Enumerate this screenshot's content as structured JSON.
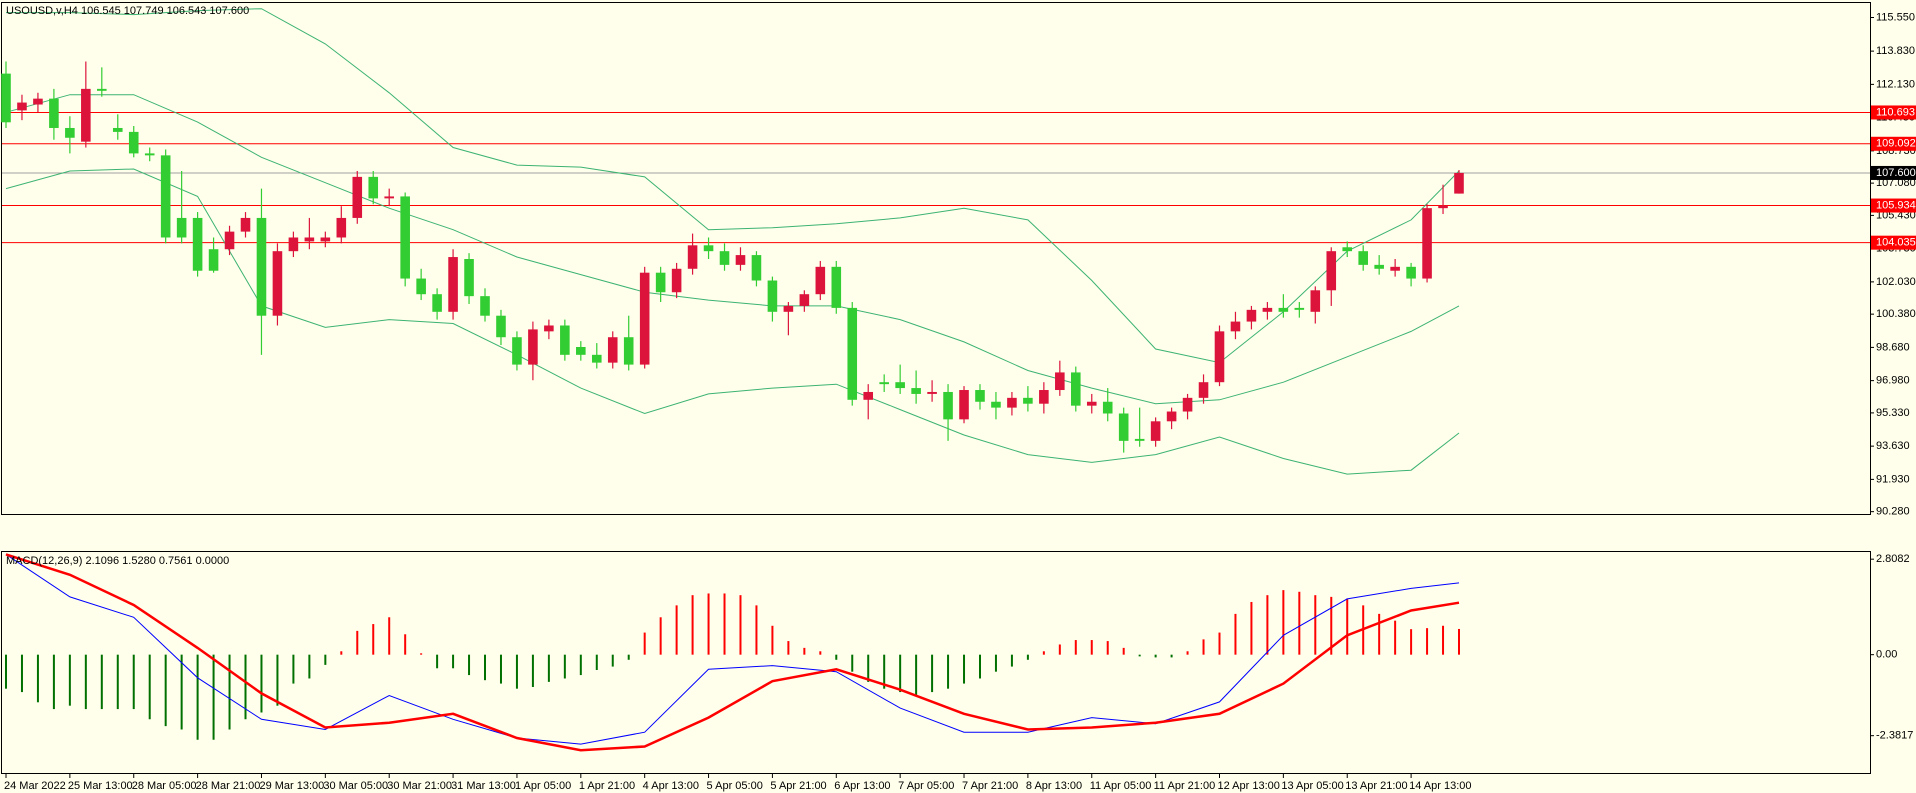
{
  "chart_data": [
    {
      "type": "candlestick",
      "title": "USOUSD,v,H4  106.545 107.749 106.543 107.600",
      "up_color": "#dc143c",
      "down_color": "#32cd32",
      "candles": [
        [
          112.68,
          113.3,
          109.9,
          110.19
        ],
        [
          110.8,
          111.6,
          110.3,
          111.2
        ],
        [
          111.1,
          111.7,
          110.7,
          111.4
        ],
        [
          111.4,
          111.9,
          109.3,
          109.9
        ],
        [
          109.9,
          110.5,
          108.6,
          109.4
        ],
        [
          109.2,
          113.3,
          108.9,
          111.9
        ],
        [
          111.9,
          113.0,
          111.5,
          111.8
        ],
        [
          109.9,
          110.6,
          109.3,
          109.7
        ],
        [
          109.7,
          110.0,
          108.4,
          108.6
        ],
        [
          108.6,
          108.9,
          108.2,
          108.5
        ],
        [
          108.5,
          108.8,
          104.0,
          104.3
        ],
        [
          105.3,
          107.7,
          104.0,
          104.3
        ],
        [
          105.3,
          105.6,
          102.3,
          102.6
        ],
        [
          103.7,
          104.3,
          102.5,
          102.6
        ],
        [
          103.7,
          104.9,
          103.4,
          104.6
        ],
        [
          104.6,
          105.6,
          104.3,
          105.3
        ],
        [
          105.3,
          106.8,
          98.3,
          100.3
        ],
        [
          100.3,
          104.0,
          99.8,
          103.6
        ],
        [
          103.6,
          104.6,
          103.3,
          104.3
        ],
        [
          104.1,
          105.3,
          103.7,
          104.3
        ],
        [
          104.1,
          104.6,
          103.8,
          104.3
        ],
        [
          104.3,
          105.9,
          104.0,
          105.3
        ],
        [
          105.3,
          107.7,
          105.0,
          107.4
        ],
        [
          107.4,
          107.7,
          106.0,
          106.3
        ],
        [
          106.3,
          106.8,
          105.9,
          106.4
        ],
        [
          106.4,
          106.6,
          101.8,
          102.2
        ],
        [
          102.2,
          102.7,
          101.1,
          101.4
        ],
        [
          101.4,
          101.7,
          100.1,
          100.5
        ],
        [
          100.5,
          103.7,
          100.1,
          103.3
        ],
        [
          103.2,
          103.5,
          100.9,
          101.3
        ],
        [
          101.3,
          101.7,
          100.0,
          100.3
        ],
        [
          100.3,
          100.6,
          98.8,
          99.2
        ],
        [
          99.2,
          99.5,
          97.5,
          97.8
        ],
        [
          97.8,
          100.0,
          97.0,
          99.6
        ],
        [
          99.5,
          100.1,
          99.1,
          99.8
        ],
        [
          99.8,
          100.1,
          98.0,
          98.3
        ],
        [
          98.7,
          99.0,
          98.0,
          98.3
        ],
        [
          98.3,
          98.9,
          97.6,
          97.9
        ],
        [
          97.9,
          99.5,
          97.6,
          99.2
        ],
        [
          99.2,
          100.3,
          97.5,
          97.8
        ],
        [
          97.8,
          102.8,
          97.6,
          102.5
        ],
        [
          102.5,
          102.8,
          101.0,
          101.5
        ],
        [
          101.5,
          103.0,
          101.2,
          102.7
        ],
        [
          102.7,
          104.5,
          102.4,
          103.9
        ],
        [
          103.9,
          104.3,
          103.2,
          103.6
        ],
        [
          103.6,
          104.0,
          102.6,
          102.9
        ],
        [
          102.9,
          103.8,
          102.6,
          103.4
        ],
        [
          103.4,
          103.6,
          101.8,
          102.1
        ],
        [
          102.1,
          102.3,
          100.0,
          100.5
        ],
        [
          100.5,
          101.0,
          99.3,
          100.8
        ],
        [
          100.8,
          101.6,
          100.5,
          101.4
        ],
        [
          101.4,
          103.1,
          101.1,
          102.8
        ],
        [
          102.8,
          103.1,
          100.4,
          100.7
        ],
        [
          100.7,
          101.0,
          95.7,
          96.0
        ],
        [
          96.0,
          96.8,
          95.0,
          96.4
        ],
        [
          96.9,
          97.3,
          96.4,
          96.8
        ],
        [
          96.9,
          97.8,
          96.3,
          96.6
        ],
        [
          96.6,
          97.5,
          95.8,
          96.3
        ],
        [
          96.3,
          97.0,
          95.9,
          96.4
        ],
        [
          96.4,
          96.8,
          93.9,
          95.0
        ],
        [
          95.0,
          96.7,
          94.8,
          96.5
        ],
        [
          96.5,
          96.8,
          95.5,
          95.9
        ],
        [
          95.9,
          96.4,
          95.0,
          95.6
        ],
        [
          95.6,
          96.4,
          95.2,
          96.1
        ],
        [
          96.1,
          96.7,
          95.4,
          95.8
        ],
        [
          95.8,
          96.9,
          95.3,
          96.5
        ],
        [
          96.5,
          98.0,
          96.2,
          97.4
        ],
        [
          97.4,
          97.7,
          95.4,
          95.7
        ],
        [
          95.7,
          96.3,
          95.3,
          95.9
        ],
        [
          95.9,
          96.6,
          94.9,
          95.3
        ],
        [
          95.3,
          95.6,
          93.3,
          93.9
        ],
        [
          94.0,
          95.6,
          93.6,
          93.9
        ],
        [
          93.9,
          95.1,
          93.6,
          94.9
        ],
        [
          94.9,
          95.6,
          94.5,
          95.4
        ],
        [
          95.4,
          96.3,
          95.0,
          96.1
        ],
        [
          96.1,
          97.3,
          95.8,
          96.9
        ],
        [
          96.9,
          99.8,
          96.7,
          99.5
        ],
        [
          99.5,
          100.5,
          99.1,
          100.0
        ],
        [
          100.0,
          100.8,
          99.6,
          100.6
        ],
        [
          100.5,
          101.0,
          100.1,
          100.7
        ],
        [
          100.7,
          101.4,
          100.2,
          100.5
        ],
        [
          100.7,
          101.0,
          100.2,
          100.6
        ],
        [
          100.5,
          101.8,
          99.9,
          101.6
        ],
        [
          101.6,
          103.8,
          100.8,
          103.6
        ],
        [
          103.8,
          104.1,
          103.3,
          103.6
        ],
        [
          103.6,
          103.9,
          102.6,
          102.9
        ],
        [
          102.9,
          103.4,
          102.4,
          102.7
        ],
        [
          102.6,
          103.2,
          102.3,
          102.8
        ],
        [
          102.8,
          103.0,
          101.8,
          102.2
        ],
        [
          102.2,
          106.0,
          102.0,
          105.8
        ],
        [
          105.8,
          107.0,
          105.5,
          105.93
        ],
        [
          106.545,
          107.749,
          106.543,
          107.6
        ]
      ],
      "categories": [
        "24 Mar 2022",
        null,
        null,
        null,
        "25 Mar 13:00",
        null,
        null,
        null,
        "28 Mar 05:00",
        null,
        null,
        null,
        "28 Mar 21:00",
        null,
        null,
        null,
        "29 Mar 13:00",
        null,
        null,
        null,
        "30 Mar 05:00",
        null,
        null,
        null,
        "30 Mar 21:00",
        null,
        null,
        null,
        "31 Mar 13:00",
        null,
        null,
        null,
        "1 Apr 05:00",
        null,
        null,
        null,
        "1 Apr 21:00",
        null,
        null,
        null,
        "4 Apr 13:00",
        null,
        null,
        null,
        "5 Apr 05:00",
        null,
        null,
        null,
        "5 Apr 21:00",
        null,
        null,
        null,
        "6 Apr 13:00",
        null,
        null,
        null,
        "7 Apr 05:00",
        null,
        null,
        null,
        "7 Apr 21:00",
        null,
        null,
        null,
        "8 Apr 13:00",
        null,
        null,
        null,
        "11 Apr 05:00",
        null,
        null,
        null,
        "11 Apr 21:00",
        null,
        null,
        null,
        "12 Apr 13:00",
        null,
        null,
        null,
        "13 Apr 05:00",
        null,
        null,
        null,
        "13 Apr 21:00",
        null,
        null,
        null,
        "14 Apr 13:00",
        null,
        null,
        null
      ],
      "series": [
        {
          "color": "#3cb371",
          "x": [
            0,
            4,
            8,
            12,
            16,
            20,
            24,
            28,
            32,
            36,
            40,
            44,
            48,
            52,
            56,
            60,
            64,
            68,
            72,
            76,
            80,
            84,
            88,
            91
          ],
          "values": [
            115.8,
            115.8,
            115.7,
            115.9,
            116.0,
            114.2,
            111.7,
            108.9,
            108.0,
            107.9,
            107.4,
            104.7,
            104.8,
            105.0,
            105.3,
            105.8,
            105.2,
            102.1,
            98.6,
            97.9,
            100.5,
            103.6,
            105.2,
            107.7
          ]
        },
        {
          "color": "#3cb371",
          "x": [
            0,
            4,
            8,
            12,
            16,
            20,
            24,
            28,
            32,
            36,
            40,
            44,
            48,
            52,
            56,
            60,
            64,
            68,
            72,
            76,
            80,
            84,
            88,
            91
          ],
          "values": [
            110.7,
            111.6,
            111.6,
            110.2,
            108.4,
            107.1,
            105.8,
            104.7,
            103.3,
            102.4,
            101.5,
            101.1,
            100.8,
            100.8,
            100.1,
            98.96,
            97.5,
            96.6,
            95.8,
            96.0,
            96.9,
            98.2,
            99.5,
            100.8
          ]
        },
        {
          "color": "#3cb371",
          "x": [
            0,
            4,
            8,
            12,
            16,
            20,
            24,
            28,
            32,
            36,
            40,
            44,
            48,
            52,
            56,
            60,
            64,
            68,
            72,
            76,
            80,
            84,
            88,
            91
          ],
          "values": [
            106.8,
            107.7,
            107.8,
            106.4,
            100.8,
            99.7,
            100.1,
            99.9,
            98.3,
            96.6,
            95.3,
            96.3,
            96.6,
            96.8,
            95.5,
            94.2,
            93.2,
            92.8,
            93.2,
            94.1,
            93.0,
            92.2,
            92.4,
            94.3
          ]
        }
      ],
      "levels": [
        {
          "value": 110.693,
          "label": "110.693",
          "color": "#ff0000",
          "label_bg": "#ff0000"
        },
        {
          "value": 109.092,
          "label": "109.092",
          "color": "#ff0000",
          "label_bg": "#ff0000"
        },
        {
          "value": 107.6,
          "label": "107.600",
          "color": "#a0a0a0",
          "label_bg": "#000000"
        },
        {
          "value": 105.934,
          "label": "105.934",
          "color": "#ff0000",
          "label_bg": "#ff0000"
        },
        {
          "value": 104.035,
          "label": "104.035",
          "color": "#ff0000",
          "label_bg": "#ff0000"
        }
      ],
      "ylim": [
        90.16,
        116.24
      ],
      "yticks": [
        {
          "value": 115.55,
          "label": "115.550"
        },
        {
          "value": 113.83,
          "label": "113.830"
        },
        {
          "value": 112.13,
          "label": "112.130"
        },
        {
          "value": 110.43,
          "label": "110.430"
        },
        {
          "value": 108.73,
          "label": "108.730"
        },
        {
          "value": 107.08,
          "label": "107.080"
        },
        {
          "value": 105.43,
          "label": "105.430"
        },
        {
          "value": 103.73,
          "label": "103.730"
        },
        {
          "value": 102.03,
          "label": "102.030"
        },
        {
          "value": 100.38,
          "label": "100.380"
        },
        {
          "value": 98.68,
          "label": "98.680"
        },
        {
          "value": 96.98,
          "label": "96.980"
        },
        {
          "value": 95.33,
          "label": "95.330"
        },
        {
          "value": 93.63,
          "label": "93.630"
        },
        {
          "value": 91.93,
          "label": "91.930"
        },
        {
          "value": 90.28,
          "label": "90.280"
        }
      ]
    },
    {
      "type": "macd",
      "title": "MACD(12,26,9) 2.1096 1.5280 0.7561 0.0000",
      "up_color": "#ff0000",
      "down_color": "#007000",
      "values": [
        -1.0,
        -1.1,
        -1.4,
        -1.6,
        -1.5,
        -1.6,
        -1.6,
        -1.6,
        -1.6,
        -1.9,
        -2.1,
        -2.2,
        -2.5,
        -2.5,
        -2.2,
        -1.9,
        -1.7,
        -1.5,
        -0.85,
        -0.7,
        -0.3,
        0.1,
        0.7,
        0.9,
        1.1,
        0.6,
        0.04,
        -0.4,
        -0.4,
        -0.6,
        -0.75,
        -0.85,
        -1.0,
        -0.95,
        -0.8,
        -0.7,
        -0.6,
        -0.45,
        -0.35,
        -0.15,
        0.65,
        1.1,
        1.45,
        1.75,
        1.8,
        1.8,
        1.75,
        1.45,
        0.85,
        0.4,
        0.2,
        0.1,
        -0.15,
        -0.5,
        -0.8,
        -1.0,
        -1.1,
        -1.2,
        -1.1,
        -1.0,
        -0.85,
        -0.7,
        -0.5,
        -0.35,
        -0.15,
        0.1,
        0.3,
        0.43,
        0.43,
        0.4,
        0.2,
        -0.05,
        -0.08,
        -0.08,
        0.1,
        0.45,
        0.65,
        1.2,
        1.55,
        1.75,
        1.9,
        1.85,
        1.75,
        1.7,
        1.65,
        1.45,
        1.2,
        1.0,
        0.75,
        0.78,
        0.85,
        0.7561
      ],
      "series": [
        {
          "color": "#0000ff",
          "width": 1,
          "x": [
            0,
            4,
            8,
            12,
            16,
            20,
            24,
            28,
            32,
            36,
            40,
            44,
            48,
            52,
            56,
            60,
            64,
            68,
            72,
            76,
            80,
            84,
            88,
            91
          ],
          "values": [
            2.95,
            1.7,
            1.1,
            -0.68,
            -1.9,
            -2.2,
            -1.2,
            -1.9,
            -2.45,
            -2.63,
            -2.28,
            -0.43,
            -0.32,
            -0.5,
            -1.57,
            -2.28,
            -2.28,
            -1.85,
            -2.03,
            -1.39,
            0.57,
            1.64,
            1.95,
            2.1096
          ]
        },
        {
          "color": "#ff0000",
          "width": 2.5,
          "x": [
            0,
            4,
            8,
            12,
            16,
            20,
            24,
            28,
            32,
            36,
            40,
            44,
            48,
            52,
            56,
            60,
            64,
            68,
            72,
            76,
            80,
            84,
            88,
            91
          ],
          "values": [
            2.95,
            2.35,
            1.46,
            0.2,
            -1.14,
            -2.14,
            -2.0,
            -1.74,
            -2.45,
            -2.81,
            -2.7,
            -1.85,
            -0.78,
            -0.43,
            -1.03,
            -1.74,
            -2.2,
            -2.14,
            -2.0,
            -1.74,
            -0.85,
            0.57,
            1.3,
            1.528
          ]
        }
      ],
      "ylim": [
        -3.45,
        2.99
      ],
      "yticks": [
        2.8082,
        {
          "value": 0,
          "label": "0.00"
        },
        -2.3817
      ]
    }
  ]
}
